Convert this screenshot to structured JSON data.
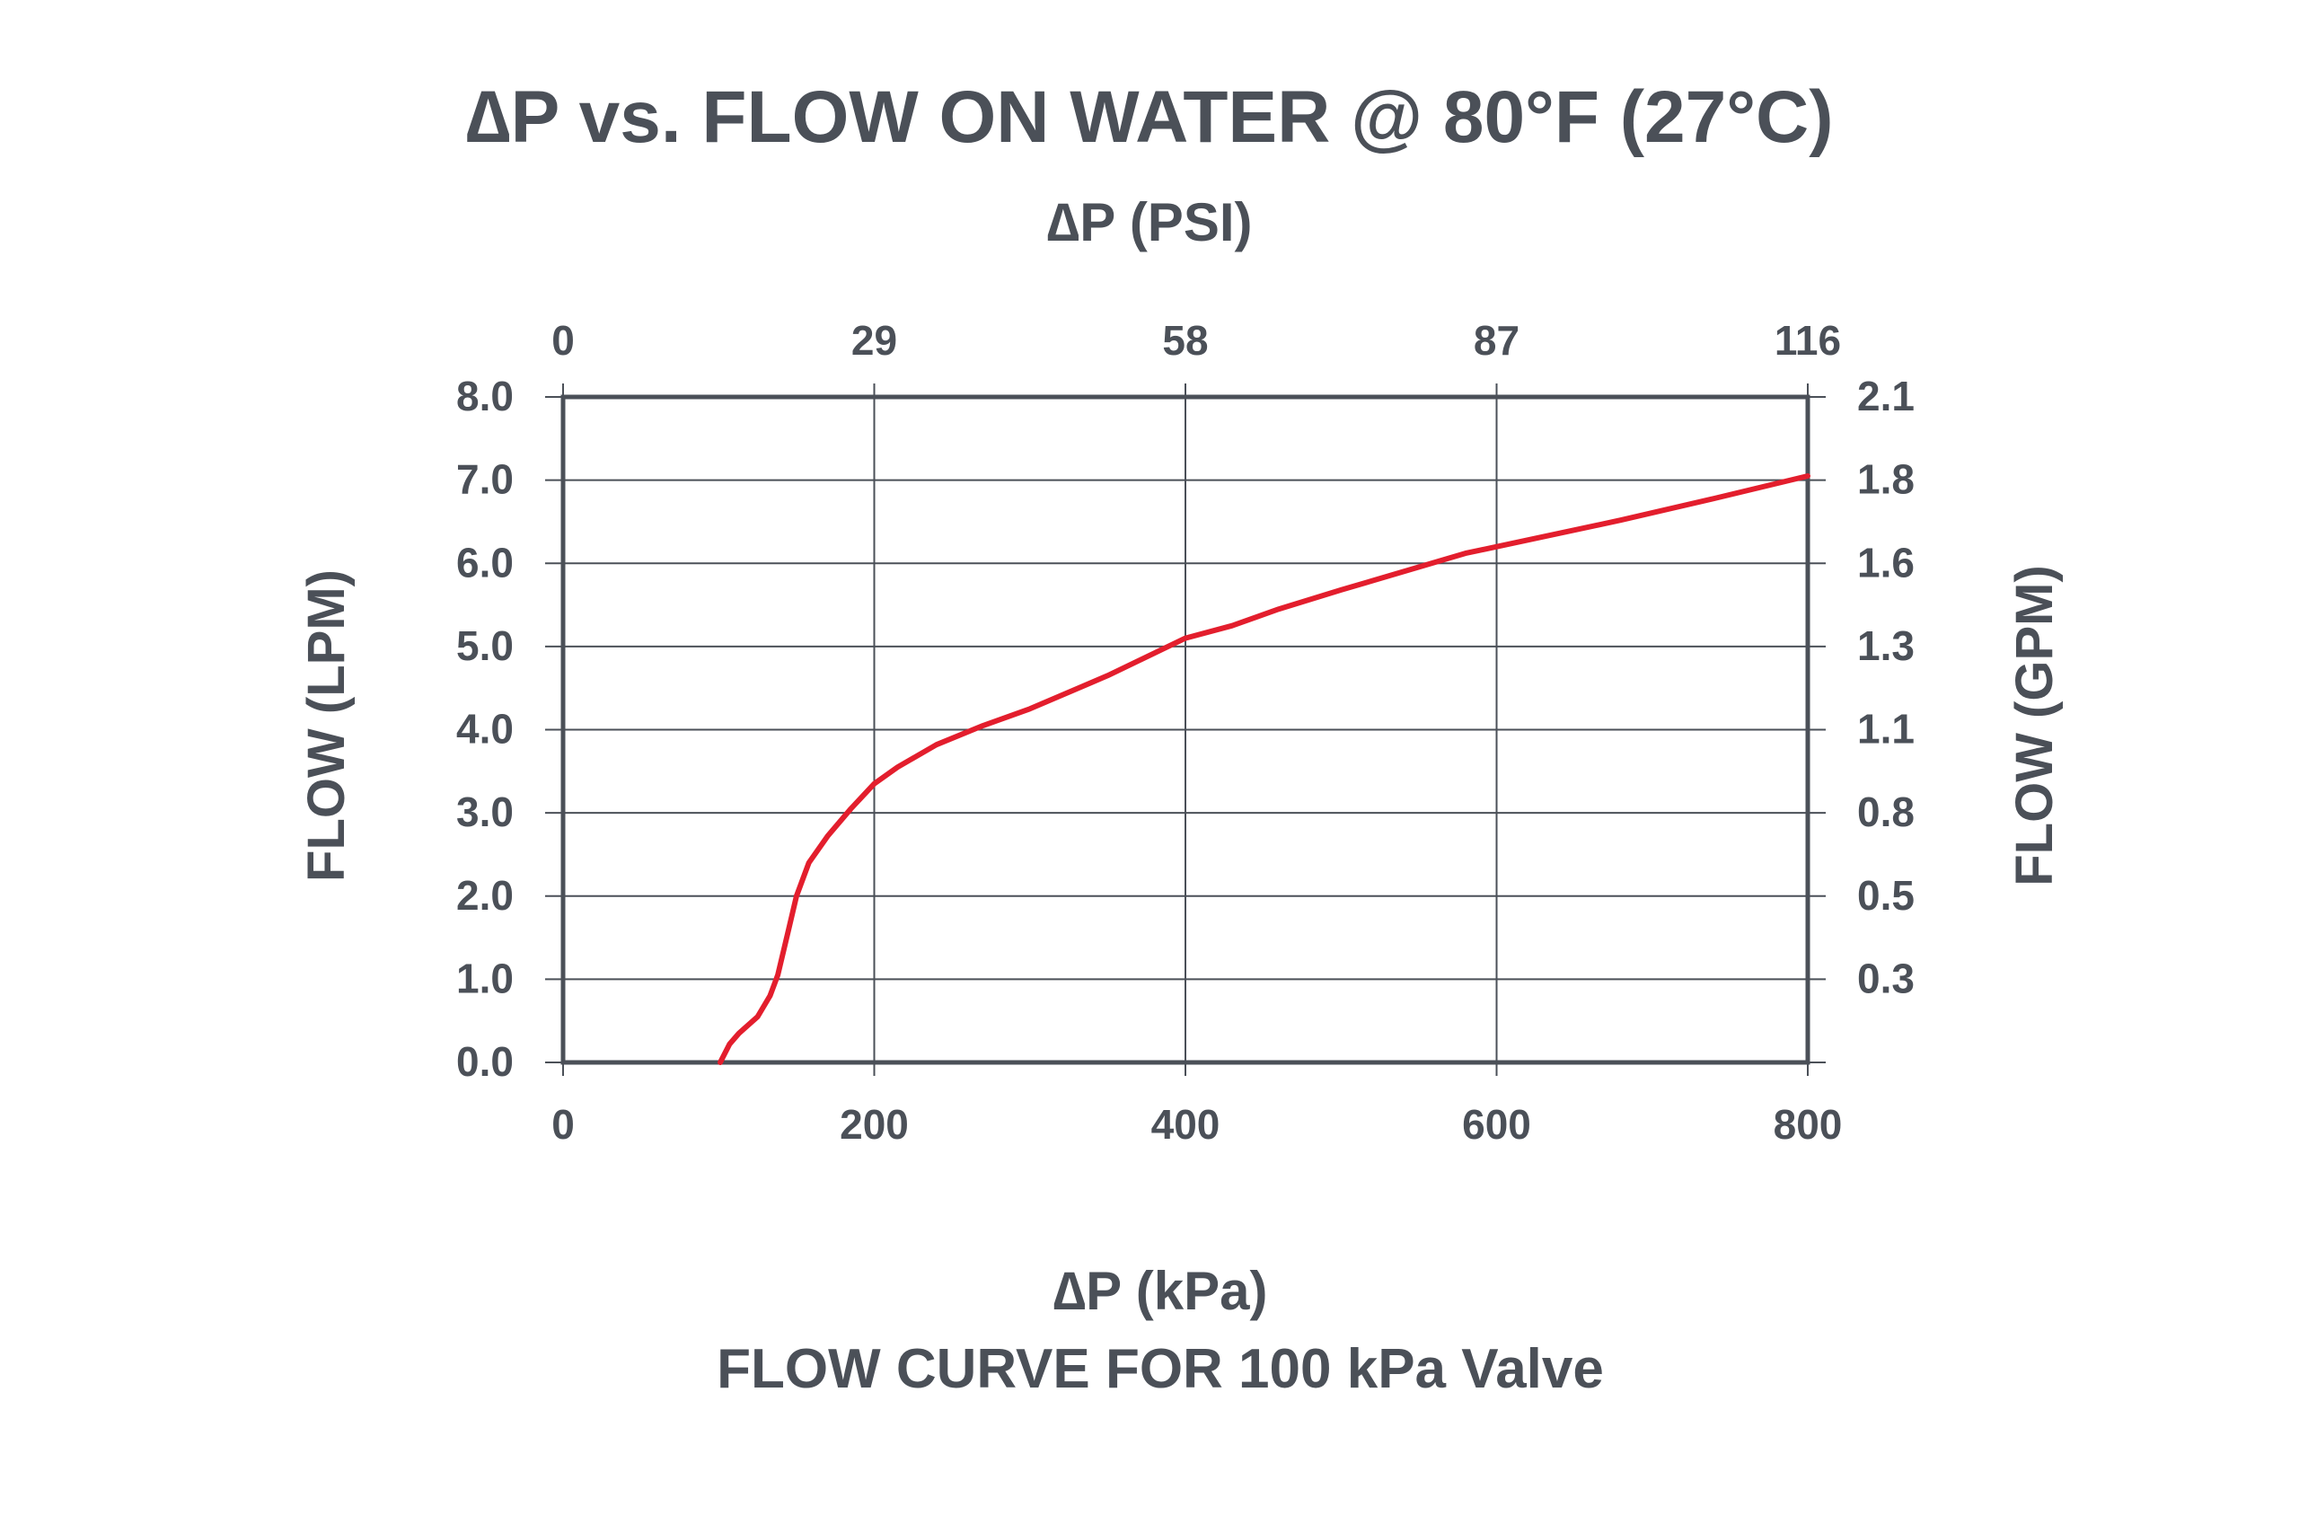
{
  "chart_data": {
    "type": "line",
    "title": "∆P vs. FLOW ON WATER @ 80°F (27°C)",
    "subtitle": "FLOW CURVE FOR 100 kPa Valve",
    "xlabel": "∆P (kPa)",
    "x2label": "∆P (PSI)",
    "ylabel": "FLOW (LPM)",
    "y2label": "FLOW (GPM)",
    "xlim": [
      0,
      800
    ],
    "ylim": [
      0,
      8
    ],
    "x_ticks": [
      "0",
      "200",
      "400",
      "600",
      "800"
    ],
    "x2_ticks": [
      "0",
      "29",
      "58",
      "87",
      "116"
    ],
    "y_ticks": [
      "0.0",
      "1.0",
      "2.0",
      "3.0",
      "4.0",
      "5.0",
      "6.0",
      "7.0",
      "8.0"
    ],
    "y2_ticks": [
      "",
      "0.3",
      "0.5",
      "0.8",
      "1.1",
      "1.3",
      "1.6",
      "1.8",
      "2.1"
    ],
    "grid": true,
    "series": [
      {
        "color": "#e31e2d",
        "points": [
          [
            101,
            0.0
          ],
          [
            107,
            0.22
          ],
          [
            113,
            0.35
          ],
          [
            125,
            0.55
          ],
          [
            133,
            0.8
          ],
          [
            138,
            1.05
          ],
          [
            145,
            1.6
          ],
          [
            150,
            2.0
          ],
          [
            158,
            2.4
          ],
          [
            170,
            2.72
          ],
          [
            185,
            3.05
          ],
          [
            200,
            3.35
          ],
          [
            215,
            3.55
          ],
          [
            240,
            3.82
          ],
          [
            270,
            4.05
          ],
          [
            300,
            4.25
          ],
          [
            350,
            4.65
          ],
          [
            380,
            4.92
          ],
          [
            400,
            5.1
          ],
          [
            430,
            5.25
          ],
          [
            460,
            5.45
          ],
          [
            500,
            5.68
          ],
          [
            540,
            5.9
          ],
          [
            580,
            6.12
          ],
          [
            620,
            6.28
          ],
          [
            680,
            6.52
          ],
          [
            740,
            6.78
          ],
          [
            800,
            7.05
          ]
        ]
      }
    ]
  }
}
